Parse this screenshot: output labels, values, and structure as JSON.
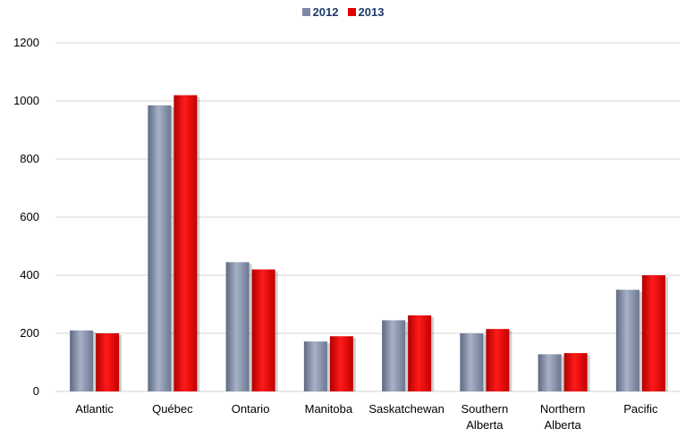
{
  "chart_data": {
    "type": "bar",
    "categories": [
      [
        "Atlantic"
      ],
      [
        "Québec"
      ],
      [
        "Ontario"
      ],
      [
        "Manitoba"
      ],
      [
        "Saskatchewan"
      ],
      [
        "Southern",
        "Alberta"
      ],
      [
        "Northern",
        "Alberta"
      ],
      [
        "Pacific"
      ]
    ],
    "series": [
      {
        "name": "2012",
        "color": "#7d8aa6",
        "values": [
          210,
          985,
          445,
          172,
          245,
          200,
          128,
          350
        ]
      },
      {
        "name": "2013",
        "color": "#e00000",
        "values": [
          200,
          1020,
          420,
          190,
          262,
          215,
          132,
          400
        ]
      }
    ],
    "ylim": [
      0,
      1200
    ],
    "yticks": [
      0,
      200,
      400,
      600,
      800,
      1000,
      1200
    ],
    "grid": true,
    "legend_position": "top"
  }
}
